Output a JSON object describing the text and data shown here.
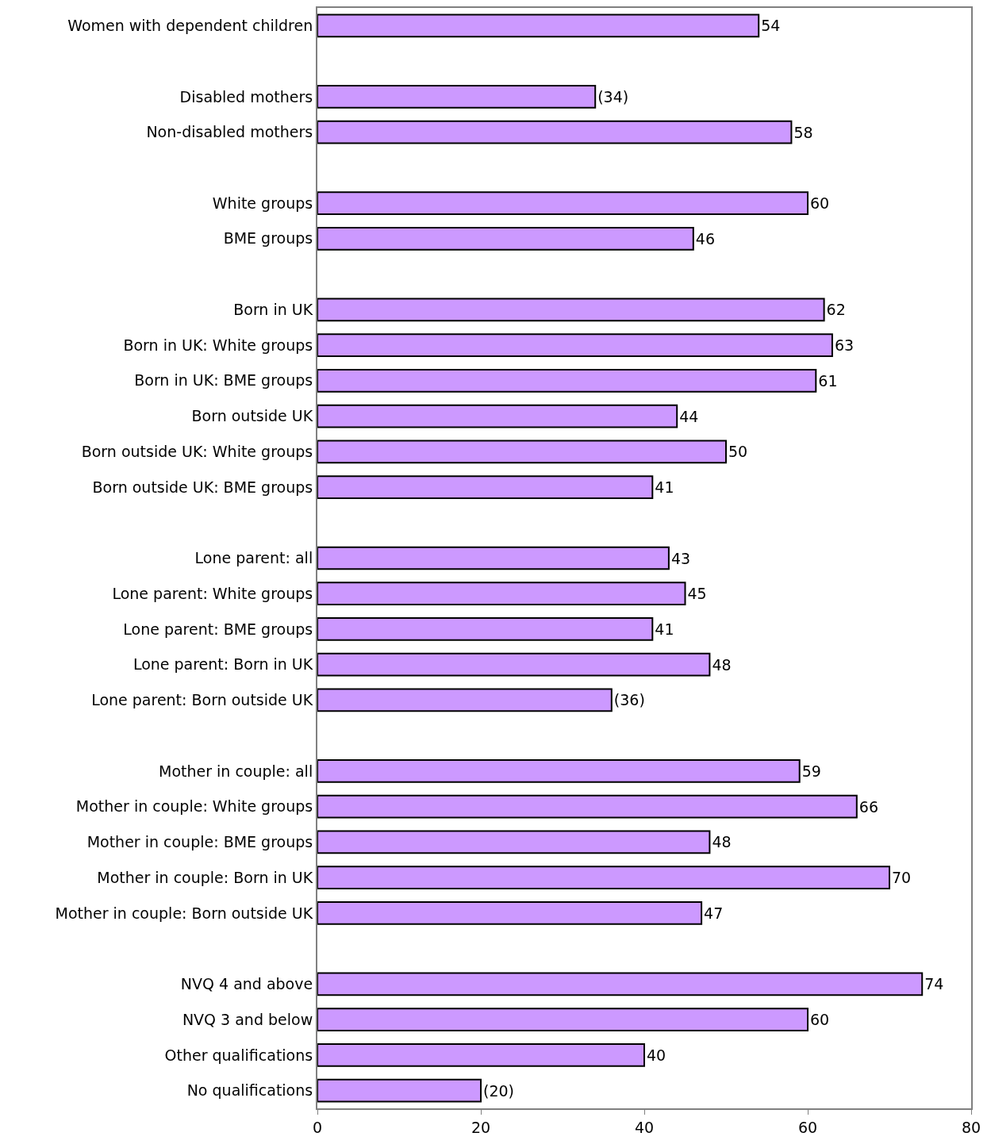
{
  "chart_data": {
    "type": "bar",
    "orientation": "horizontal",
    "categories": [
      "Women with dependent children",
      null,
      "Disabled mothers",
      "Non-disabled mothers",
      null,
      "White groups",
      "BME groups",
      null,
      "Born in UK",
      "Born in UK: White groups",
      "Born in UK: BME groups",
      "Born outside UK",
      "Born outside UK: White groups",
      "Born outside UK: BME groups",
      null,
      "Lone parent: all",
      "Lone parent: White groups",
      "Lone parent: BME groups",
      "Lone parent: Born in UK",
      "Lone parent: Born outside UK",
      null,
      "Mother in couple: all",
      "Mother in couple: White groups",
      "Mother in couple: BME groups",
      "Mother in couple: Born in UK",
      "Mother in couple: Born outside UK",
      null,
      "NVQ 4 and above",
      "NVQ 3 and below",
      "Other qualifications",
      "No qualifications"
    ],
    "values": [
      54,
      null,
      34,
      58,
      null,
      60,
      46,
      null,
      62,
      63,
      61,
      44,
      50,
      41,
      null,
      43,
      45,
      41,
      48,
      36,
      null,
      59,
      66,
      48,
      70,
      47,
      null,
      74,
      60,
      40,
      20
    ],
    "value_labels": [
      "54",
      null,
      "(34)",
      "58",
      null,
      "60",
      "46",
      null,
      "62",
      "63",
      "61",
      "44",
      "50",
      "41",
      null,
      "43",
      "45",
      "41",
      "48",
      "(36)",
      null,
      "59",
      "66",
      "48",
      "70",
      "47",
      null,
      "74",
      "60",
      "40",
      "(20)"
    ],
    "color": "#cc99ff",
    "xlim": [
      0,
      80
    ],
    "xticks": [
      0,
      20,
      40,
      60,
      80
    ],
    "legend": false
  }
}
